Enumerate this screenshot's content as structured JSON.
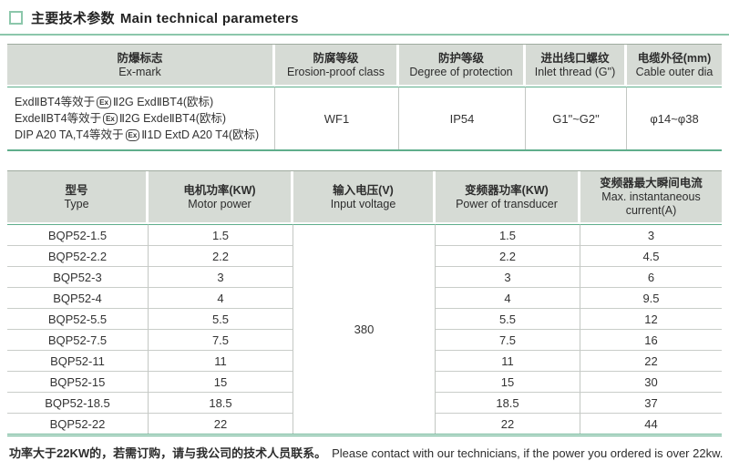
{
  "page": {
    "title_cn": "主要技术参数",
    "title_en": "Main technical parameters"
  },
  "colors": {
    "accent_green": "#5fae8c",
    "light_green": "#8cc7ab",
    "header_bg": "#d6dbd5",
    "grid_gray": "#c3c7c3",
    "text": "#333333"
  },
  "spec_table": {
    "columns": [
      {
        "cn": "防爆标志",
        "en": "Ex-mark"
      },
      {
        "cn": "防腐等级",
        "en": "Erosion-proof class"
      },
      {
        "cn": "防护等级",
        "en": "Degree of protection"
      },
      {
        "cn": "进出线口螺纹",
        "en": "Inlet thread (G\")"
      },
      {
        "cn": "电缆外径(mm)",
        "en": "Cable outer dia"
      }
    ],
    "ex_badge_label": "Ex",
    "ex_mark_lines": [
      "ExdⅡBT4等效于{Ex}Ⅱ2G ExdⅡBT4(欧标)",
      "ExdeⅡBT4等效于{Ex}Ⅱ2G ExdeⅡBT4(欧标)",
      "DIP A20 TA,T4等效于{Ex}Ⅱ1D ExtD A20 T4(欧标)"
    ],
    "values": {
      "erosion_proof_class": "WF1",
      "degree_of_protection": "IP54",
      "inlet_thread": "G1\"~G2\"",
      "cable_outer_dia": "φ14~φ38"
    }
  },
  "model_table": {
    "columns": [
      {
        "cn": "型号",
        "en": "Type"
      },
      {
        "cn": "电机功率(KW)",
        "en": "Motor power"
      },
      {
        "cn": "输入电压(V)",
        "en": "Input voltage"
      },
      {
        "cn": "变频器功率(KW)",
        "en": "Power of transducer"
      },
      {
        "cn": "变频器最大瞬间电流",
        "en": "Max. instantaneous current(A)"
      }
    ],
    "input_voltage": "380",
    "rows": [
      {
        "type": "BQP52-1.5",
        "motor_power": "1.5",
        "transducer_power": "1.5",
        "max_current": "3"
      },
      {
        "type": "BQP52-2.2",
        "motor_power": "2.2",
        "transducer_power": "2.2",
        "max_current": "4.5"
      },
      {
        "type": "BQP52-3",
        "motor_power": "3",
        "transducer_power": "3",
        "max_current": "6"
      },
      {
        "type": "BQP52-4",
        "motor_power": "4",
        "transducer_power": "4",
        "max_current": "9.5"
      },
      {
        "type": "BQP52-5.5",
        "motor_power": "5.5",
        "transducer_power": "5.5",
        "max_current": "12"
      },
      {
        "type": "BQP52-7.5",
        "motor_power": "7.5",
        "transducer_power": "7.5",
        "max_current": "16"
      },
      {
        "type": "BQP52-11",
        "motor_power": "11",
        "transducer_power": "11",
        "max_current": "22"
      },
      {
        "type": "BQP52-15",
        "motor_power": "15",
        "transducer_power": "15",
        "max_current": "30"
      },
      {
        "type": "BQP52-18.5",
        "motor_power": "18.5",
        "transducer_power": "18.5",
        "max_current": "37"
      },
      {
        "type": "BQP52-22",
        "motor_power": "22",
        "transducer_power": "22",
        "max_current": "44"
      }
    ]
  },
  "footer": {
    "cn": "功率大于22KW的，若需订购，请与我公司的技术人员联系。",
    "en": "Please contact with our technicians, if the power you ordered is over 22kw."
  }
}
